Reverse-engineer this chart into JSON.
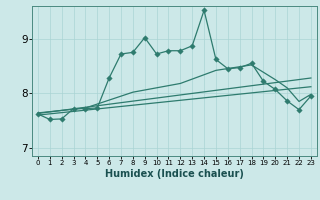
{
  "xlabel": "Humidex (Indice chaleur)",
  "bg_color": "#cce8e8",
  "line_color": "#2e7b6e",
  "xlim": [
    -0.5,
    23.5
  ],
  "ylim": [
    6.85,
    9.6
  ],
  "yticks": [
    7,
    8,
    9
  ],
  "xticks": [
    0,
    1,
    2,
    3,
    4,
    5,
    6,
    7,
    8,
    9,
    10,
    11,
    12,
    13,
    14,
    15,
    16,
    17,
    18,
    19,
    20,
    21,
    22,
    23
  ],
  "main_x": [
    0,
    1,
    2,
    3,
    4,
    5,
    6,
    7,
    8,
    9,
    10,
    11,
    12,
    13,
    14,
    15,
    16,
    17,
    18,
    19,
    20,
    21,
    22,
    23
  ],
  "main_y": [
    7.62,
    7.52,
    7.53,
    7.72,
    7.72,
    7.73,
    8.28,
    8.72,
    8.75,
    9.02,
    8.72,
    8.78,
    8.78,
    8.87,
    9.52,
    8.62,
    8.45,
    8.47,
    8.55,
    8.22,
    8.07,
    7.86,
    7.7,
    7.95
  ],
  "line1_x": [
    0,
    23
  ],
  "line1_y": [
    7.6,
    8.12
  ],
  "line2_x": [
    0,
    23
  ],
  "line2_y": [
    7.63,
    8.28
  ],
  "line3_x": [
    0,
    4,
    8,
    12,
    15,
    18,
    20,
    21,
    22,
    23
  ],
  "line3_y": [
    7.64,
    7.73,
    8.02,
    8.18,
    8.42,
    8.52,
    8.25,
    8.1,
    7.85,
    7.98
  ],
  "grid_color": "#aad4d4",
  "grid_lw": 0.5,
  "line_lw": 0.9,
  "marker_size": 2.8
}
